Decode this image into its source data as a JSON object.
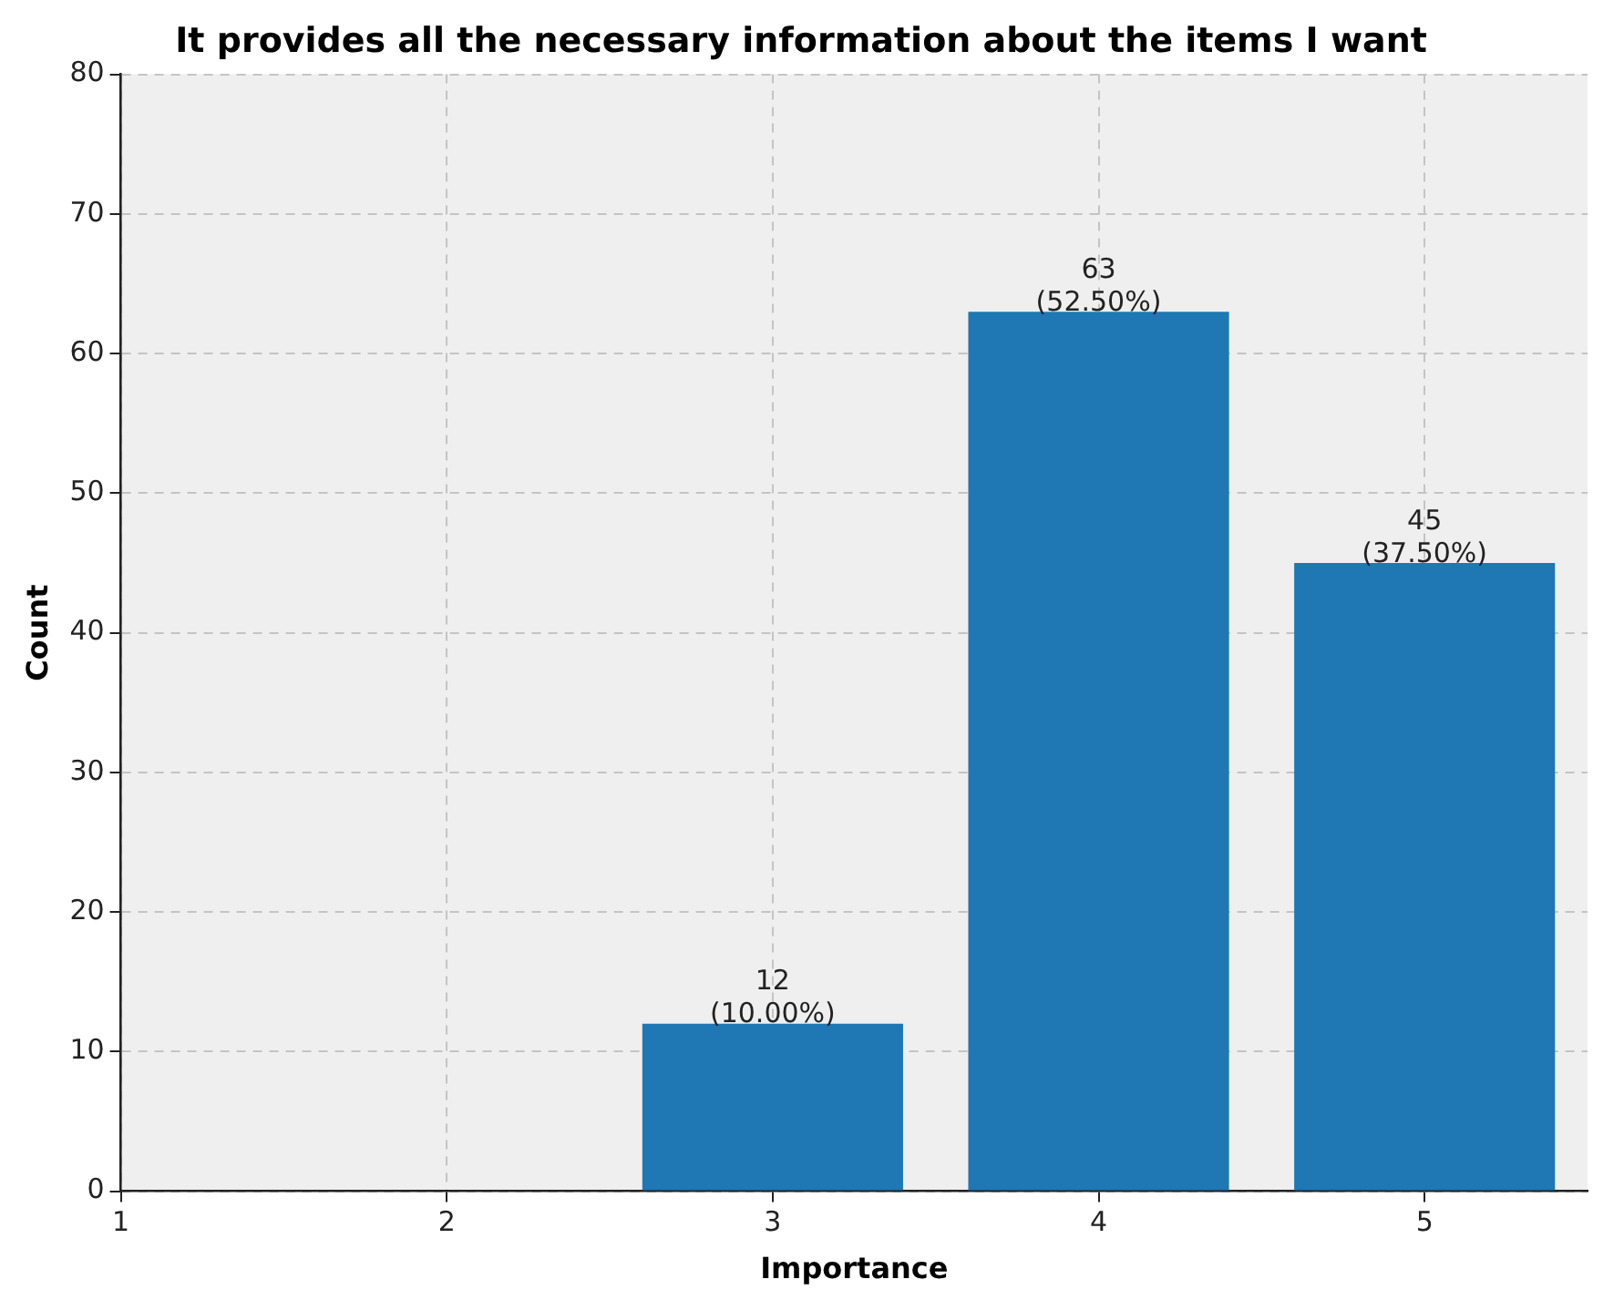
{
  "chart_data": {
    "type": "bar",
    "title": "It provides all the necessary information about the items I want",
    "xlabel": "Importance",
    "ylabel": "Count",
    "x": [
      3,
      4,
      5
    ],
    "values": [
      12,
      63,
      45
    ],
    "color": "#1f77b4",
    "value_labels": [
      "12\n(10.00%)",
      "63\n(52.50%)",
      "45\n(37.50%)"
    ],
    "xlim": [
      1,
      5.5
    ],
    "xticks": [
      1,
      2,
      3,
      4,
      5
    ],
    "ylim": [
      0,
      80
    ],
    "yticks": [
      0,
      10,
      20,
      30,
      40,
      50,
      60,
      70,
      80
    ],
    "grid": true
  }
}
